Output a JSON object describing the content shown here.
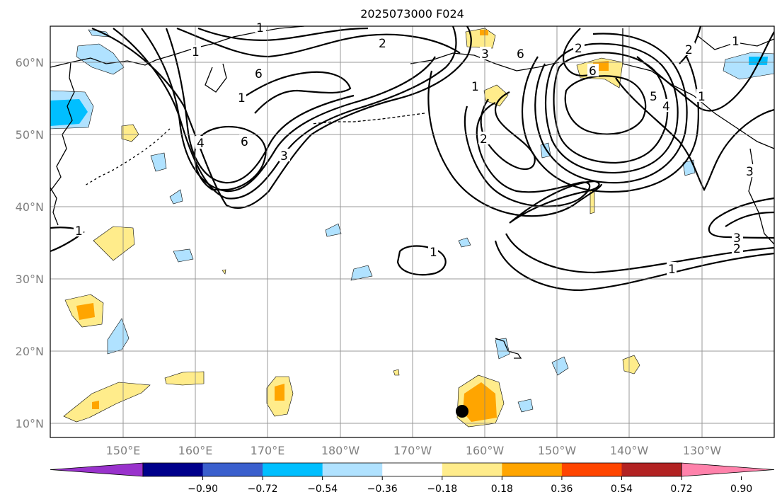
{
  "title": "2025073000 F024",
  "map": {
    "projection": "lat-lon",
    "lon_range_deg_east": [
      140,
      240
    ],
    "lat_range_deg": [
      8,
      65
    ],
    "grid": true,
    "lat_ticks": [
      "10°N",
      "20°N",
      "30°N",
      "40°N",
      "50°N",
      "60°N"
    ],
    "lon_ticks": [
      "150°E",
      "160°E",
      "170°E",
      "180°W",
      "170°W",
      "160°W",
      "150°W",
      "140°W",
      "130°W"
    ],
    "contour_labels": [
      "1",
      "2",
      "3",
      "6",
      "1",
      "2",
      "6",
      "3",
      "4",
      "1",
      "6",
      "1",
      "2",
      "1",
      "2",
      "4",
      "5",
      "1",
      "6",
      "1",
      "3",
      "2",
      "3",
      "1",
      "1"
    ],
    "marker": {
      "type": "black-dot",
      "lat": 11.5,
      "lon_deg_east": 197
    }
  },
  "colorbar": {
    "ticks": [
      "−0.90",
      "−0.72",
      "−0.54",
      "−0.36",
      "−0.18",
      "0.18",
      "0.36",
      "0.54",
      "0.72",
      "0.90"
    ],
    "colors": [
      "#9932cc",
      "#00008b",
      "#3a5fcd",
      "#00bfff",
      "#b0e2ff",
      "#ffffff",
      "#ffec8b",
      "#ffa500",
      "#ff4500",
      "#b22222",
      "#ff82ab"
    ],
    "extend": "both"
  }
}
